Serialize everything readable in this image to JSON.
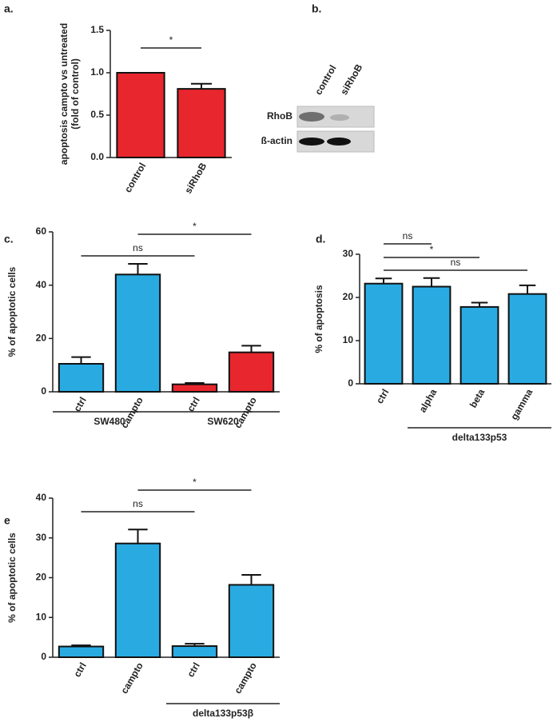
{
  "chart_data": [
    {
      "type": "bar",
      "panel": "a.",
      "ylabel": [
        "apoptosis campto vs untreated",
        "(fold of control)"
      ],
      "categories": [
        "control",
        "siRhoB"
      ],
      "values": [
        1.0,
        0.81
      ],
      "errors": [
        0,
        0.06
      ],
      "colors": [
        "#e8262e",
        "#e8262e"
      ],
      "ylim": [
        0,
        1.5
      ],
      "yticks": [
        {
          "value": 0,
          "label": "0.0"
        },
        {
          "value": 0.5,
          "label": "0.5"
        },
        {
          "value": 1,
          "label": "1.0"
        },
        1.5
      ],
      "annotations": [
        {
          "label": "*",
          "from": 0,
          "to": 1
        }
      ],
      "groups": []
    },
    {
      "type": "bar",
      "panel": "c.",
      "ylabel": [
        "% of apoptotic cells"
      ],
      "categories": [
        "ctrl",
        "campto",
        "ctrl",
        "campto"
      ],
      "values": [
        10.5,
        44,
        2.8,
        14.8
      ],
      "errors": [
        2.5,
        4,
        0.5,
        2.5
      ],
      "colors": [
        "#29abe2",
        "#29abe2",
        "#e8262e",
        "#e8262e"
      ],
      "ylim": [
        0,
        60
      ],
      "yticks": [
        0,
        20,
        40,
        60
      ],
      "annotations": [
        {
          "label": "ns",
          "from": 0,
          "to": 2
        },
        {
          "label": "*",
          "from": 1,
          "to": 3
        }
      ],
      "groups": [
        {
          "label": "SW480",
          "from": 0,
          "to": 1
        },
        {
          "label": "SW620",
          "from": 2,
          "to": 3
        }
      ]
    },
    {
      "type": "bar",
      "panel": "d.",
      "ylabel": [
        "% of apoptosis"
      ],
      "categories": [
        "ctrl",
        "alpha",
        "beta",
        "gamma"
      ],
      "values": [
        23.2,
        22.5,
        17.8,
        20.8
      ],
      "errors": [
        1.2,
        2,
        1,
        2
      ],
      "colors": [
        "#29abe2",
        "#29abe2",
        "#29abe2",
        "#29abe2"
      ],
      "ylim": [
        0,
        30
      ],
      "yticks": [
        0,
        10,
        20,
        30
      ],
      "annotations": [
        {
          "label": "ns",
          "from": 0,
          "to": 1
        },
        {
          "label": "*",
          "from": 0,
          "to": 2
        },
        {
          "label": "ns",
          "from": 0,
          "to": 3
        }
      ],
      "groups": [
        {
          "label": "delta133p53",
          "from": 1,
          "to": 3
        }
      ]
    },
    {
      "type": "bar",
      "panel": "e",
      "ylabel": [
        "% of apoptotic cells"
      ],
      "categories": [
        "ctrl",
        "campto",
        "ctrl",
        "campto"
      ],
      "values": [
        2.7,
        28.6,
        2.8,
        18.2
      ],
      "errors": [
        0.3,
        3.5,
        0.6,
        2.5
      ],
      "colors": [
        "#29abe2",
        "#29abe2",
        "#29abe2",
        "#29abe2"
      ],
      "ylim": [
        0,
        40
      ],
      "yticks": [
        0,
        10,
        20,
        30,
        40
      ],
      "annotations": [
        {
          "label": "ns",
          "from": 0,
          "to": 2
        },
        {
          "label": "*",
          "from": 1,
          "to": 3
        }
      ],
      "groups": [
        {
          "label": "delta133p53β",
          "from": 2,
          "to": 3
        }
      ]
    }
  ],
  "blot": {
    "panel": "b.",
    "lanes": [
      "control",
      "siRhoB"
    ],
    "rows": [
      "RhoB",
      "ß-actin"
    ]
  }
}
